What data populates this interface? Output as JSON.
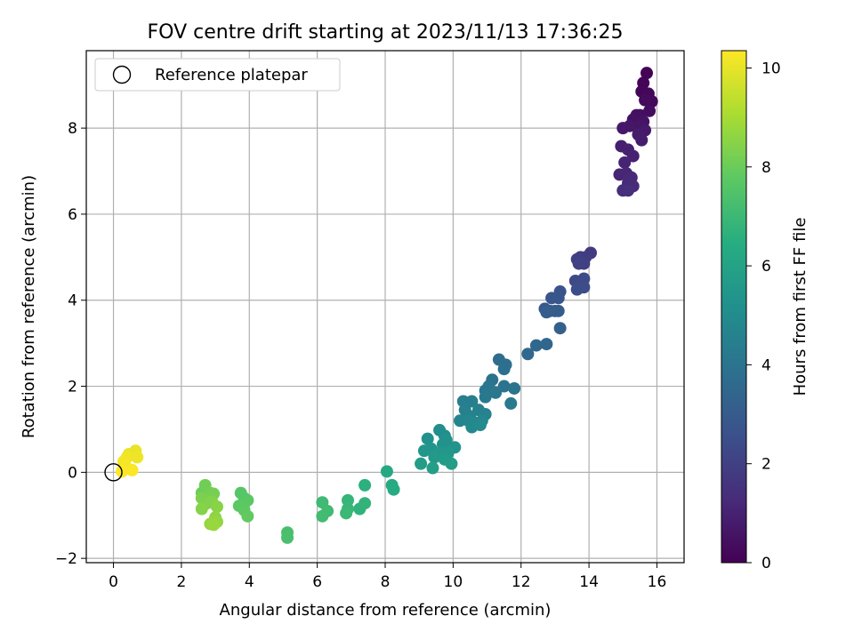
{
  "chart_data": {
    "type": "scatter",
    "title": "FOV centre drift starting at 2023/11/13 17:36:25",
    "xlabel": "Angular distance from reference (arcmin)",
    "ylabel": "Rotation from reference (arcmin)",
    "xlim": [
      -0.8,
      16.8
    ],
    "ylim": [
      -2.1,
      9.8
    ],
    "xticks": [
      0,
      2,
      4,
      6,
      8,
      10,
      12,
      14,
      16
    ],
    "yticks": [
      -2,
      0,
      2,
      4,
      6,
      8
    ],
    "grid": true,
    "legend": {
      "position": "top-left",
      "entries": [
        {
          "label": "Reference platepar",
          "marker": "open-circle"
        }
      ]
    },
    "reference_point": {
      "x": 0,
      "y": 0
    },
    "colorbar": {
      "label": "Hours from first FF file",
      "min": 0,
      "max": 10.35,
      "ticks": [
        0,
        2,
        4,
        6,
        8,
        10
      ],
      "colormap": "viridis"
    },
    "points": [
      [
        15.7,
        9.28,
        0.05
      ],
      [
        15.6,
        9.05,
        0.1
      ],
      [
        15.55,
        8.85,
        0.15
      ],
      [
        15.75,
        8.8,
        0.2
      ],
      [
        15.85,
        8.62,
        0.25
      ],
      [
        15.65,
        8.65,
        0.3
      ],
      [
        15.78,
        8.4,
        0.35
      ],
      [
        15.5,
        8.3,
        0.4
      ],
      [
        15.4,
        8.3,
        0.45
      ],
      [
        15.3,
        8.2,
        0.5
      ],
      [
        15.6,
        8.15,
        0.55
      ],
      [
        15.5,
        8.05,
        0.6
      ],
      [
        15.2,
        8.05,
        0.65
      ],
      [
        15.0,
        8.0,
        0.7
      ],
      [
        15.65,
        7.95,
        0.75
      ],
      [
        15.45,
        7.85,
        0.8
      ],
      [
        15.55,
        7.72,
        0.85
      ],
      [
        14.95,
        7.58,
        0.9
      ],
      [
        15.15,
        7.5,
        0.95
      ],
      [
        15.3,
        7.35,
        1.0
      ],
      [
        15.05,
        7.2,
        1.05
      ],
      [
        14.9,
        6.92,
        1.1
      ],
      [
        15.1,
        6.95,
        1.15
      ],
      [
        15.25,
        6.85,
        1.2
      ],
      [
        15.15,
        6.72,
        1.25
      ],
      [
        15.3,
        6.65,
        1.3
      ],
      [
        15.0,
        6.55,
        1.35
      ],
      [
        15.15,
        6.55,
        1.4
      ],
      [
        14.05,
        5.1,
        1.8
      ],
      [
        13.9,
        5.0,
        1.85
      ],
      [
        13.75,
        5.0,
        1.9
      ],
      [
        13.65,
        4.95,
        1.95
      ],
      [
        13.85,
        4.85,
        2.0
      ],
      [
        13.7,
        4.85,
        2.05
      ],
      [
        13.6,
        4.45,
        2.3
      ],
      [
        13.85,
        4.5,
        2.35
      ],
      [
        13.75,
        4.35,
        2.4
      ],
      [
        13.85,
        4.3,
        2.45
      ],
      [
        13.65,
        4.25,
        2.5
      ],
      [
        13.15,
        4.2,
        2.7
      ],
      [
        12.9,
        4.05,
        2.75
      ],
      [
        13.1,
        4.05,
        2.8
      ],
      [
        12.7,
        3.8,
        2.9
      ],
      [
        12.85,
        3.75,
        2.95
      ],
      [
        13.0,
        3.75,
        3.0
      ],
      [
        13.1,
        3.75,
        3.05
      ],
      [
        12.75,
        3.72,
        3.1
      ],
      [
        13.15,
        3.35,
        3.2
      ],
      [
        12.75,
        2.98,
        3.45
      ],
      [
        12.45,
        2.95,
        3.5
      ],
      [
        12.2,
        2.75,
        3.55
      ],
      [
        11.35,
        2.62,
        3.7
      ],
      [
        11.55,
        2.5,
        3.75
      ],
      [
        11.5,
        2.4,
        3.8
      ],
      [
        11.15,
        2.15,
        3.9
      ],
      [
        11.5,
        2.0,
        3.95
      ],
      [
        11.8,
        1.95,
        4.0
      ],
      [
        11.05,
        2.0,
        4.05
      ],
      [
        10.95,
        1.9,
        4.1
      ],
      [
        11.25,
        1.85,
        4.15
      ],
      [
        10.95,
        1.75,
        4.2
      ],
      [
        11.7,
        1.6,
        4.25
      ],
      [
        10.3,
        1.65,
        4.4
      ],
      [
        10.55,
        1.65,
        4.45
      ],
      [
        10.35,
        1.45,
        4.5
      ],
      [
        10.75,
        1.45,
        4.55
      ],
      [
        10.95,
        1.35,
        4.6
      ],
      [
        10.5,
        1.3,
        4.65
      ],
      [
        10.2,
        1.2,
        4.7
      ],
      [
        10.45,
        1.2,
        4.75
      ],
      [
        10.85,
        1.2,
        4.8
      ],
      [
        10.65,
        1.15,
        4.85
      ],
      [
        10.55,
        1.05,
        4.9
      ],
      [
        10.8,
        1.1,
        4.95
      ],
      [
        9.6,
        0.98,
        5.1
      ],
      [
        9.75,
        0.85,
        5.15
      ],
      [
        9.25,
        0.78,
        5.2
      ],
      [
        9.8,
        0.75,
        5.25
      ],
      [
        9.7,
        0.65,
        5.3
      ],
      [
        10.05,
        0.58,
        5.35
      ],
      [
        9.35,
        0.55,
        5.4
      ],
      [
        9.15,
        0.5,
        5.45
      ],
      [
        9.6,
        0.45,
        5.5
      ],
      [
        9.85,
        0.45,
        5.55
      ],
      [
        9.45,
        0.35,
        5.6
      ],
      [
        9.75,
        0.3,
        5.65
      ],
      [
        9.05,
        0.2,
        5.7
      ],
      [
        9.95,
        0.2,
        5.75
      ],
      [
        9.4,
        0.1,
        5.8
      ],
      [
        8.05,
        0.02,
        6.3
      ],
      [
        8.2,
        -0.3,
        6.35
      ],
      [
        8.25,
        -0.4,
        6.4
      ],
      [
        7.4,
        -0.3,
        6.6
      ],
      [
        7.25,
        -0.85,
        6.7
      ],
      [
        7.4,
        -0.72,
        6.75
      ],
      [
        6.9,
        -0.65,
        6.85
      ],
      [
        6.9,
        -0.85,
        6.9
      ],
      [
        6.85,
        -0.95,
        6.95
      ],
      [
        6.15,
        -0.7,
        7.05
      ],
      [
        6.3,
        -0.9,
        7.1
      ],
      [
        6.15,
        -1.02,
        7.15
      ],
      [
        5.12,
        -1.4,
        7.3
      ],
      [
        5.12,
        -1.52,
        7.35
      ],
      [
        3.75,
        -0.48,
        7.6
      ],
      [
        3.85,
        -0.6,
        7.65
      ],
      [
        3.95,
        -0.65,
        7.7
      ],
      [
        3.7,
        -0.78,
        7.75
      ],
      [
        3.85,
        -0.88,
        7.8
      ],
      [
        3.95,
        -1.02,
        7.85
      ],
      [
        2.6,
        -0.48,
        8.0
      ],
      [
        2.75,
        -0.55,
        8.05
      ],
      [
        2.7,
        -0.3,
        8.1
      ],
      [
        2.85,
        -0.48,
        8.15
      ],
      [
        2.95,
        -0.5,
        8.2
      ],
      [
        2.6,
        -0.6,
        8.3
      ],
      [
        2.75,
        -0.72,
        8.35
      ],
      [
        2.9,
        -0.68,
        8.4
      ],
      [
        2.6,
        -0.85,
        8.45
      ],
      [
        3.05,
        -0.8,
        8.5
      ],
      [
        3.0,
        -1.05,
        8.6
      ],
      [
        3.05,
        -1.15,
        8.65
      ],
      [
        2.85,
        -1.2,
        8.7
      ],
      [
        2.95,
        -1.22,
        8.75
      ],
      [
        0.65,
        0.5,
        10.0
      ],
      [
        0.45,
        0.42,
        10.05
      ],
      [
        0.7,
        0.35,
        10.1
      ],
      [
        0.4,
        0.35,
        10.15
      ],
      [
        0.3,
        0.25,
        10.2
      ],
      [
        0.35,
        0.15,
        10.25
      ],
      [
        0.55,
        0.05,
        10.3
      ],
      [
        0.25,
        0.02,
        10.32
      ]
    ]
  }
}
